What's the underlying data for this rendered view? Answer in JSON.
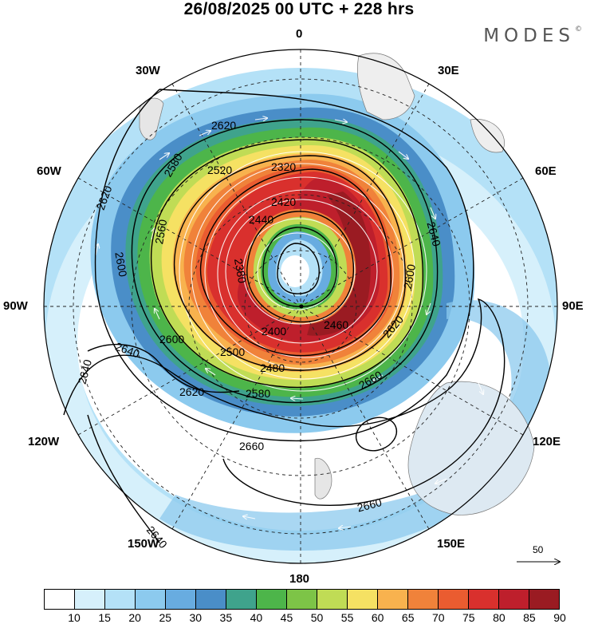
{
  "title": "26/08/2025  00 UTC  + 228 hrs",
  "brand": {
    "name": "MODES",
    "mark": "©"
  },
  "longitude_labels": {
    "north": "0",
    "south": "180",
    "east": "90E",
    "west": "90W",
    "e30": "30E",
    "e60": "60E",
    "e120": "120E",
    "e150": "150E",
    "w30": "30W",
    "w60": "60W",
    "w120": "120W",
    "w150": "150W"
  },
  "contours": {
    "c2320": "2320",
    "c2380": "2380",
    "c2400": "2400",
    "c2420": "2420",
    "c2440": "2440",
    "c2460": "2460",
    "c2480": "2480",
    "c2500": "2500",
    "c2520": "2520",
    "c2560": "2560",
    "c2580": "2580",
    "c2600": "2600",
    "c2620": "2620",
    "c2640": "2640",
    "c2660": "2660"
  },
  "reference_vector": {
    "value": "50"
  },
  "colorbar": {
    "colors": [
      "#ffffff",
      "#d6f0fb",
      "#b4e1f7",
      "#8ccaee",
      "#68ace0",
      "#4a8ec8",
      "#3fa38c",
      "#4db54a",
      "#7dc447",
      "#c0dc55",
      "#f5e163",
      "#f8b24e",
      "#f0823a",
      "#ea5c30",
      "#d9302d",
      "#be1f2c",
      "#9a1b22"
    ],
    "labels": [
      "10",
      "15",
      "20",
      "25",
      "30",
      "35",
      "40",
      "45",
      "50",
      "55",
      "60",
      "65",
      "70",
      "75",
      "80",
      "85",
      "90"
    ]
  }
}
